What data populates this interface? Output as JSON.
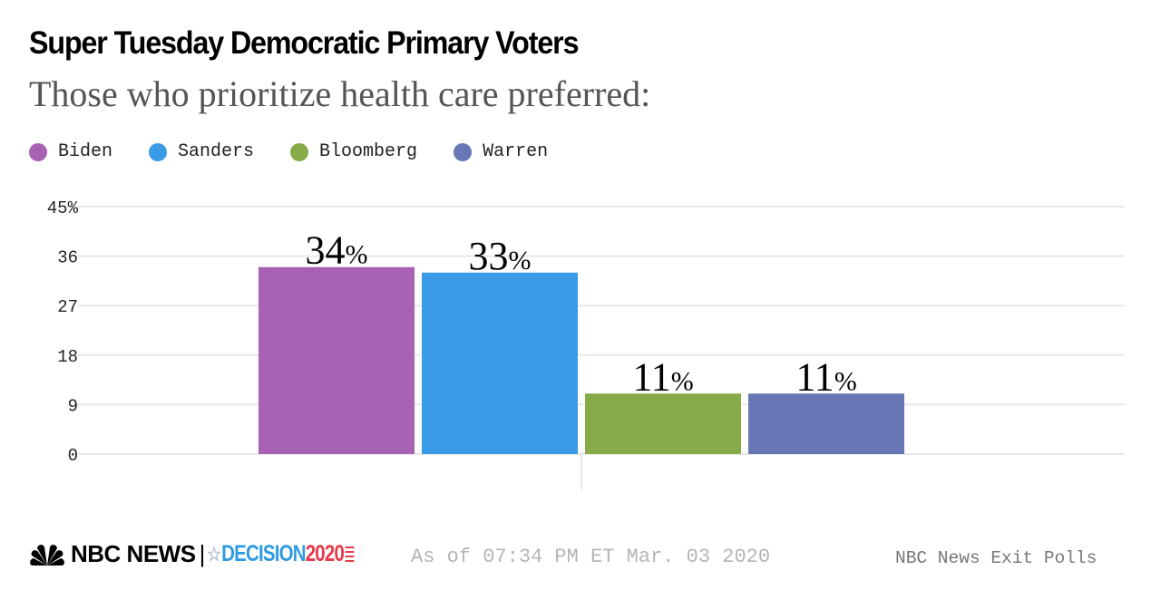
{
  "header": {
    "title": "Super Tuesday Democratic Primary Voters",
    "subtitle": "Those who prioritize health care preferred:"
  },
  "legend": [
    {
      "label": "Biden",
      "color": "#a862b4"
    },
    {
      "label": "Sanders",
      "color": "#3a9ae6"
    },
    {
      "label": "Bloomberg",
      "color": "#86ab48"
    },
    {
      "label": "Warren",
      "color": "#6878b6"
    }
  ],
  "chart_data": {
    "type": "bar",
    "title": "Super Tuesday Democratic Primary Voters",
    "subtitle": "Those who prioritize health care preferred:",
    "categories": [
      "Biden",
      "Sanders",
      "Bloomberg",
      "Warren"
    ],
    "values": [
      34,
      33,
      11,
      11
    ],
    "colors": [
      "#a862b4",
      "#3a9ae6",
      "#86ab48",
      "#6878b6"
    ],
    "value_labels": [
      "34",
      "33",
      "11",
      "11"
    ],
    "value_suffix": "%",
    "xlabel": "",
    "ylabel": "",
    "ylim": [
      0,
      45
    ],
    "yticks": [
      0,
      9,
      18,
      27,
      36,
      45
    ],
    "ytick_labels": [
      "0",
      "9",
      "18",
      "27",
      "36",
      "45%"
    ],
    "grid": true,
    "legend_position": "top-left"
  },
  "footer": {
    "brand": "NBC NEWS",
    "separator": "|",
    "decision_word": "DECISION",
    "decision_year": "2020",
    "as_of": "As of 07:34 PM ET Mar. 03 2020",
    "source": "NBC News Exit Polls"
  }
}
